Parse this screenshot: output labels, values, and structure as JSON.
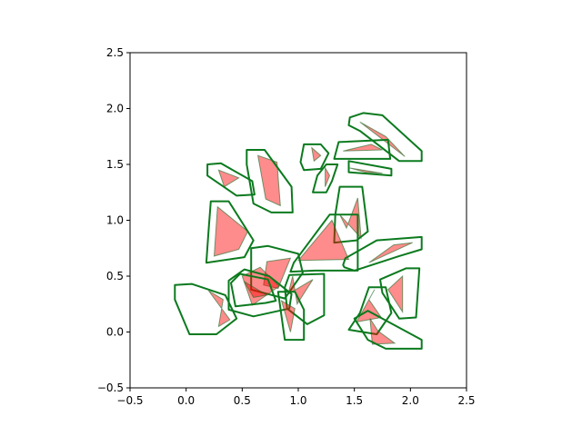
{
  "chart_data": {
    "type": "scatter",
    "title": "",
    "xlabel": "",
    "ylabel": "",
    "xlim": [
      -0.5,
      2.5
    ],
    "ylim": [
      -0.5,
      2.5
    ],
    "x_ticks": [
      "−0.5",
      "0.0",
      "0.5",
      "1.0",
      "1.5",
      "2.0",
      "2.5"
    ],
    "y_ticks": [
      "−0.5",
      "0.0",
      "0.5",
      "1.0",
      "1.5",
      "2.0",
      "2.5"
    ],
    "grid": false,
    "legend": "none",
    "fill_color": "#ff0000",
    "fill_opacity": 0.45,
    "edge_color": "#1b6b26",
    "buffer_color": "#0b7a1e",
    "shapes": [
      {
        "triangle": [
          [
            1.55,
            1.88
          ],
          [
            1.78,
            1.75
          ],
          [
            1.95,
            1.57
          ]
        ],
        "buffer": [
          [
            1.46,
            1.92
          ],
          [
            1.58,
            1.96
          ],
          [
            1.75,
            1.94
          ],
          [
            2.1,
            1.62
          ],
          [
            2.1,
            1.53
          ],
          [
            1.9,
            1.53
          ],
          [
            1.55,
            1.8
          ],
          [
            1.45,
            1.85
          ]
        ]
      },
      {
        "triangle": [
          [
            1.4,
            1.62
          ],
          [
            1.65,
            1.68
          ],
          [
            1.75,
            1.63
          ]
        ],
        "buffer": [
          [
            1.32,
            1.55
          ],
          [
            1.36,
            1.7
          ],
          [
            1.8,
            1.72
          ],
          [
            1.82,
            1.55
          ]
        ]
      },
      {
        "triangle": [
          [
            1.45,
            1.47
          ],
          [
            1.75,
            1.42
          ],
          [
            1.6,
            1.43
          ]
        ],
        "buffer": [
          [
            1.45,
            1.53
          ],
          [
            1.83,
            1.46
          ],
          [
            1.83,
            1.4
          ],
          [
            1.45,
            1.43
          ]
        ]
      },
      {
        "triangle": [
          [
            1.12,
            1.65
          ],
          [
            1.14,
            1.53
          ],
          [
            1.2,
            1.58
          ]
        ],
        "buffer": [
          [
            1.02,
            1.52
          ],
          [
            1.05,
            1.68
          ],
          [
            1.2,
            1.68
          ],
          [
            1.27,
            1.6
          ],
          [
            1.2,
            1.46
          ],
          [
            1.05,
            1.45
          ]
        ]
      },
      {
        "triangle": [
          [
            1.24,
            1.47
          ],
          [
            1.28,
            1.4
          ],
          [
            1.24,
            1.3
          ]
        ],
        "buffer": [
          [
            1.13,
            1.25
          ],
          [
            1.17,
            1.4
          ],
          [
            1.25,
            1.5
          ],
          [
            1.35,
            1.5
          ],
          [
            1.3,
            1.35
          ],
          [
            1.25,
            1.25
          ]
        ]
      },
      {
        "triangle": [
          [
            0.29,
            1.45
          ],
          [
            0.47,
            1.38
          ],
          [
            0.34,
            1.3
          ]
        ],
        "buffer": [
          [
            0.19,
            1.5
          ],
          [
            0.31,
            1.51
          ],
          [
            0.59,
            1.35
          ],
          [
            0.61,
            1.23
          ],
          [
            0.45,
            1.22
          ],
          [
            0.19,
            1.4
          ]
        ]
      },
      {
        "triangle": [
          [
            0.64,
            1.58
          ],
          [
            0.81,
            1.52
          ],
          [
            0.84,
            1.13
          ],
          [
            0.71,
            1.19
          ]
        ],
        "buffer": [
          [
            0.54,
            1.63
          ],
          [
            0.7,
            1.63
          ],
          [
            0.94,
            1.3
          ],
          [
            0.95,
            1.07
          ],
          [
            0.76,
            1.07
          ],
          [
            0.6,
            1.15
          ],
          [
            0.54,
            1.5
          ]
        ]
      },
      {
        "triangle": [
          [
            0.28,
            1.12
          ],
          [
            0.55,
            0.9
          ],
          [
            0.47,
            0.74
          ],
          [
            0.25,
            0.68
          ]
        ],
        "buffer": [
          [
            0.22,
            1.17
          ],
          [
            0.38,
            1.17
          ],
          [
            0.6,
            0.82
          ],
          [
            0.52,
            0.67
          ],
          [
            0.18,
            0.62
          ],
          [
            0.2,
            0.9
          ]
        ]
      },
      {
        "triangle": [
          [
            1.37,
            1.05
          ],
          [
            1.43,
            0.93
          ],
          [
            1.53,
            1.2
          ],
          [
            1.56,
            0.84
          ]
        ],
        "buffer": [
          [
            1.33,
            1.05
          ],
          [
            1.32,
            0.8
          ],
          [
            1.52,
            0.82
          ],
          [
            1.62,
            0.9
          ],
          [
            1.57,
            1.3
          ],
          [
            1.37,
            1.3
          ]
        ]
      },
      {
        "triangle": [
          [
            1.0,
            0.64
          ],
          [
            1.45,
            0.65
          ],
          [
            1.3,
            1.0
          ]
        ],
        "buffer": [
          [
            0.93,
            0.54
          ],
          [
            0.96,
            0.62
          ],
          [
            1.28,
            1.05
          ],
          [
            1.53,
            1.05
          ],
          [
            1.53,
            0.75
          ],
          [
            1.53,
            0.55
          ],
          [
            1.15,
            0.55
          ]
        ]
      },
      {
        "triangle": [
          [
            1.63,
            0.62
          ],
          [
            1.85,
            0.78
          ],
          [
            2.02,
            0.8
          ]
        ],
        "buffer": [
          [
            1.4,
            0.6
          ],
          [
            1.42,
            0.66
          ],
          [
            1.7,
            0.82
          ],
          [
            2.1,
            0.85
          ],
          [
            2.1,
            0.74
          ],
          [
            1.9,
            0.68
          ],
          [
            1.5,
            0.55
          ],
          [
            1.41,
            0.58
          ]
        ]
      },
      {
        "triangle": [
          [
            0.72,
            0.63
          ],
          [
            0.93,
            0.66
          ],
          [
            0.82,
            0.39
          ],
          [
            0.69,
            0.42
          ]
        ],
        "buffer": [
          [
            0.58,
            0.75
          ],
          [
            0.73,
            0.77
          ],
          [
            1.0,
            0.7
          ],
          [
            1.04,
            0.53
          ],
          [
            0.88,
            0.3
          ],
          [
            0.58,
            0.38
          ]
        ]
      },
      {
        "triangle": [
          [
            0.5,
            0.5
          ],
          [
            0.66,
            0.58
          ],
          [
            0.83,
            0.41
          ],
          [
            0.59,
            0.24
          ]
        ],
        "buffer": [
          [
            0.38,
            0.46
          ],
          [
            0.52,
            0.56
          ],
          [
            0.74,
            0.5
          ],
          [
            0.94,
            0.34
          ],
          [
            0.92,
            0.21
          ],
          [
            0.6,
            0.14
          ],
          [
            0.38,
            0.2
          ]
        ]
      },
      {
        "triangle": [
          [
            0.52,
            0.45
          ],
          [
            0.6,
            0.31
          ],
          [
            0.72,
            0.33
          ]
        ],
        "buffer": [
          [
            0.4,
            0.44
          ],
          [
            0.48,
            0.52
          ],
          [
            0.73,
            0.47
          ],
          [
            0.8,
            0.28
          ],
          [
            0.71,
            0.26
          ],
          [
            0.44,
            0.23
          ]
        ]
      },
      {
        "triangle": [
          [
            0.2,
            0.37
          ],
          [
            0.33,
            0.29
          ],
          [
            0.29,
            0.05
          ],
          [
            0.39,
            0.11
          ]
        ],
        "buffer": [
          [
            -0.1,
            0.42
          ],
          [
            0.05,
            0.43
          ],
          [
            0.35,
            0.33
          ],
          [
            0.45,
            0.12
          ],
          [
            0.27,
            -0.02
          ],
          [
            0.03,
            -0.02
          ],
          [
            -0.1,
            0.29
          ]
        ]
      },
      {
        "triangle": [
          [
            0.91,
            0.34
          ],
          [
            0.95,
            0.5
          ],
          [
            0.99,
            0.25
          ],
          [
            1.13,
            0.47
          ]
        ],
        "buffer": [
          [
            0.88,
            0.4
          ],
          [
            0.92,
            0.51
          ],
          [
            1.23,
            0.52
          ],
          [
            1.23,
            0.15
          ],
          [
            1.08,
            0.07
          ],
          [
            0.9,
            0.21
          ]
        ]
      },
      {
        "triangle": [
          [
            0.85,
            0.28
          ],
          [
            0.97,
            0.21
          ],
          [
            0.93,
            0.0
          ]
        ],
        "buffer": [
          [
            0.82,
            0.36
          ],
          [
            0.97,
            0.36
          ],
          [
            1.05,
            0.2
          ],
          [
            1.05,
            -0.07
          ],
          [
            0.88,
            -0.07
          ]
        ]
      },
      {
        "triangle": [
          [
            1.68,
            0.38
          ],
          [
            1.63,
            0.29
          ],
          [
            1.74,
            0.13
          ],
          [
            1.52,
            0.09
          ]
        ],
        "buffer": [
          [
            1.45,
            0.02
          ],
          [
            1.55,
            0.17
          ],
          [
            1.63,
            0.4
          ],
          [
            1.78,
            0.4
          ],
          [
            1.83,
            0.17
          ],
          [
            1.7,
            -0.02
          ]
        ]
      },
      {
        "triangle": [
          [
            1.93,
            0.5
          ],
          [
            1.8,
            0.38
          ],
          [
            1.93,
            0.18
          ]
        ],
        "buffer": [
          [
            1.73,
            0.47
          ],
          [
            1.96,
            0.57
          ],
          [
            2.08,
            0.57
          ],
          [
            2.05,
            0.13
          ],
          [
            1.9,
            0.12
          ],
          [
            1.75,
            0.35
          ]
        ]
      },
      {
        "triangle": [
          [
            1.64,
            0.12
          ],
          [
            1.71,
            0.01
          ],
          [
            1.86,
            -0.1
          ],
          [
            1.66,
            -0.11
          ]
        ],
        "buffer": [
          [
            1.5,
            0.12
          ],
          [
            1.62,
            0.19
          ],
          [
            2.1,
            -0.07
          ],
          [
            2.1,
            -0.15
          ],
          [
            1.78,
            -0.15
          ],
          [
            1.62,
            -0.07
          ]
        ]
      }
    ]
  }
}
